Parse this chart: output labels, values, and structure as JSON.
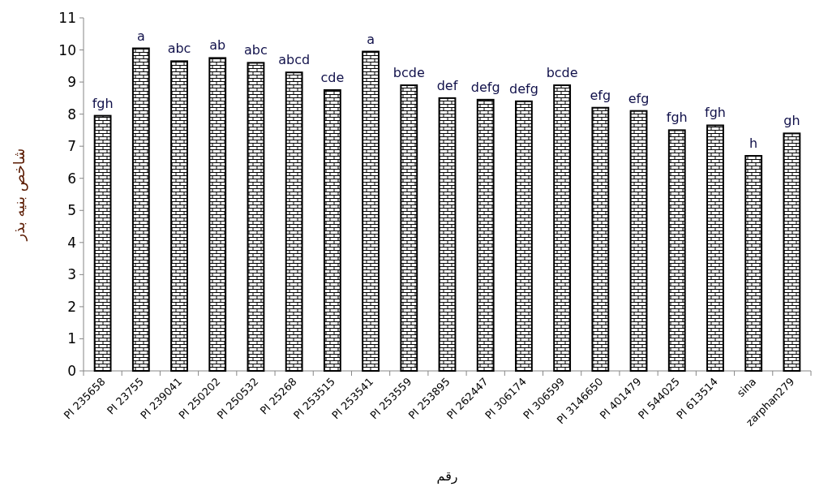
{
  "chart_data": {
    "type": "bar",
    "categories": [
      "PI 235658",
      "PI 23755",
      "PI 239041",
      "PI 250202",
      "PI 250532",
      "PI 25268",
      "PI 253515",
      "PI 253541",
      "PI 253559",
      "PI 253895",
      "PI 262447",
      "PI 306174",
      "PI 306599",
      "PI 3146650",
      "PI 401479",
      "PI 544025",
      "PI 613514",
      "sina",
      "zarphan279"
    ],
    "values": [
      7.95,
      10.05,
      9.65,
      9.75,
      9.6,
      9.3,
      8.75,
      9.95,
      8.9,
      8.5,
      8.45,
      8.4,
      8.9,
      8.2,
      8.1,
      7.5,
      7.65,
      6.7,
      7.4
    ],
    "color": "#000000",
    "ylim": [
      0,
      11
    ],
    "yticks": [
      0,
      1,
      2,
      3,
      4,
      5,
      6,
      7,
      8,
      9,
      10,
      11
    ],
    "xlabel": "رقم",
    "ylabel": "شاخص بنیه بذر",
    "annotations": [
      {
        "text": "fgh",
        "x": "PI 235658",
        "y": 7.95
      },
      {
        "text": "a",
        "x": "PI 23755",
        "y": 10.05
      },
      {
        "text": "abc",
        "x": "PI 239041",
        "y": 9.65
      },
      {
        "text": "ab",
        "x": "PI 250202",
        "y": 9.75
      },
      {
        "text": "abc",
        "x": "PI 250532",
        "y": 9.6
      },
      {
        "text": "abcd",
        "x": "PI 25268",
        "y": 9.3
      },
      {
        "text": "cde",
        "x": "PI 253515",
        "y": 8.75
      },
      {
        "text": "a",
        "x": "PI 253541",
        "y": 9.95
      },
      {
        "text": "bcde",
        "x": "PI 253559",
        "y": 8.9
      },
      {
        "text": "def",
        "x": "PI 253895",
        "y": 8.5
      },
      {
        "text": "defg",
        "x": "PI 262447",
        "y": 8.45
      },
      {
        "text": "defg",
        "x": "PI 306174",
        "y": 8.4
      },
      {
        "text": "bcde",
        "x": "PI 306599",
        "y": 8.9
      },
      {
        "text": "efg",
        "x": "PI 3146650",
        "y": 8.2
      },
      {
        "text": "efg",
        "x": "PI 401479",
        "y": 8.1
      },
      {
        "text": "fgh",
        "x": "PI 544025",
        "y": 7.5
      },
      {
        "text": "fgh",
        "x": "PI 613514",
        "y": 7.65
      },
      {
        "text": "h",
        "x": "sina",
        "y": 6.7
      },
      {
        "text": "gh",
        "x": "zarphan279",
        "y": 7.4
      }
    ]
  }
}
